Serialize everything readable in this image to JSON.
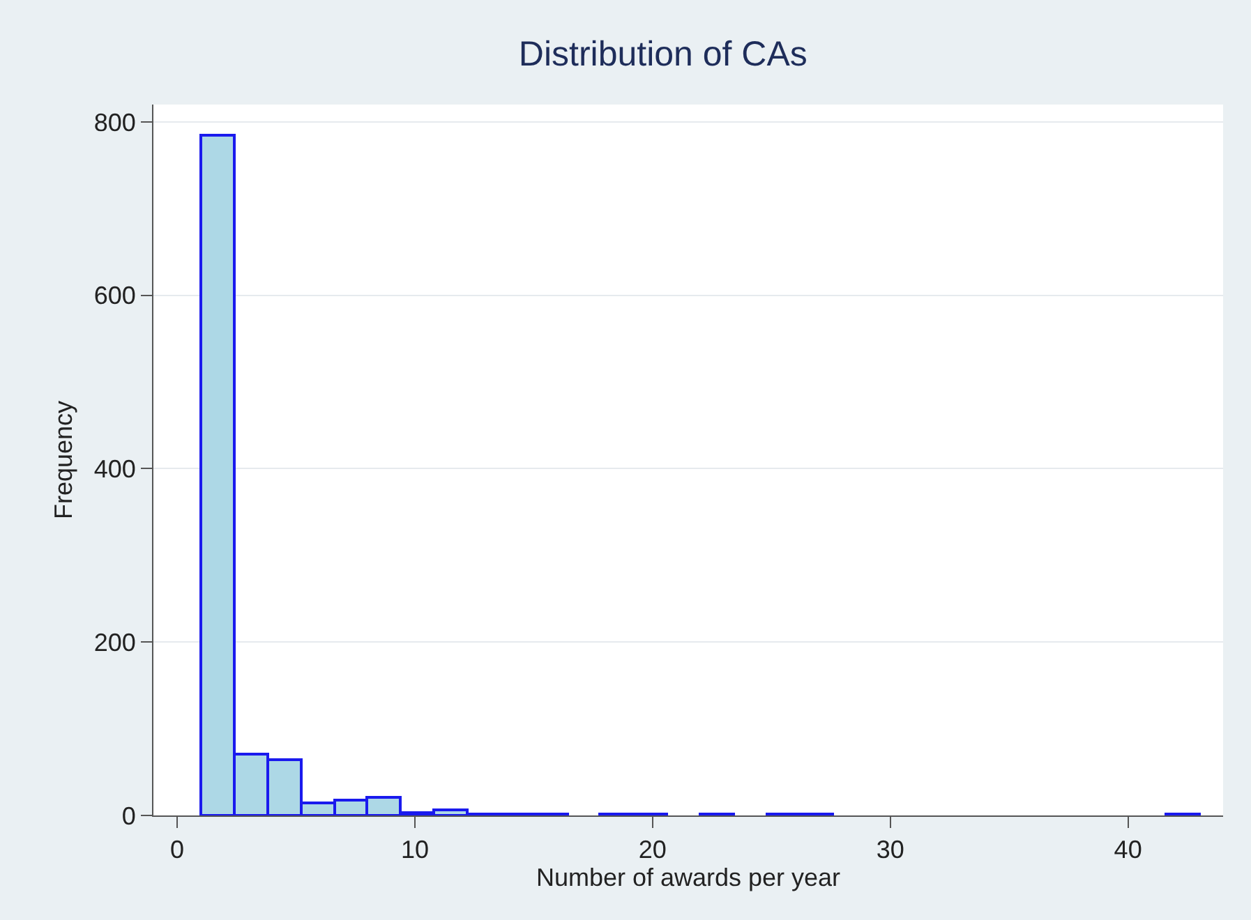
{
  "chart_data": {
    "type": "histogram",
    "title": "Distribution of CAs",
    "xlabel": "Number of awards per year",
    "ylabel": "Frequency",
    "bins": [
      1,
      2.4,
      3.8,
      5.2,
      6.6,
      8,
      9.4,
      10.8,
      12.2,
      13.6,
      15,
      16.4,
      17.8,
      19.2,
      20.6,
      22,
      23.4,
      24.8,
      26.2,
      27.6,
      29,
      30.4,
      31.8,
      33.2,
      34.6,
      36,
      37.4,
      38.8,
      40.2,
      41.6,
      43
    ],
    "values": [
      785,
      71,
      65,
      15,
      18,
      21,
      3,
      6,
      1,
      1,
      1,
      0,
      1,
      1,
      0,
      1,
      0,
      1,
      1,
      0,
      0,
      0,
      0,
      0,
      0,
      0,
      0,
      0,
      0,
      1
    ],
    "color": "#add8e6",
    "xlim": [
      -1,
      44
    ],
    "xticks": [
      0,
      10,
      20,
      30,
      40
    ],
    "ylim": [
      0,
      820
    ],
    "yticks": [
      0,
      200,
      400,
      600,
      800
    ],
    "grid": "y"
  }
}
